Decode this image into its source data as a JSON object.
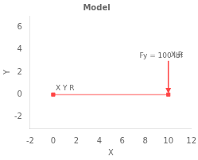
{
  "chart_data": {
    "type": "line",
    "title": "Model",
    "xlabel": "X",
    "ylabel": "Y",
    "xlim": [
      -2,
      12
    ],
    "ylim": [
      -3,
      7
    ],
    "xticks": [
      -2,
      0,
      2,
      4,
      6,
      8,
      10,
      12
    ],
    "yticks": [
      -2,
      0,
      2,
      4,
      6
    ],
    "grid": false,
    "series": [
      {
        "type": "line",
        "color": "#ff9999",
        "x": [
          0,
          10
        ],
        "values": [
          0,
          0
        ]
      },
      {
        "type": "scatter",
        "color": "#ff4444",
        "marker": "square",
        "x": [
          0,
          10
        ],
        "values": [
          0,
          0
        ]
      }
    ],
    "arrows": [
      {
        "x": [
          10,
          10
        ],
        "y": [
          3.0,
          0.1
        ],
        "color": "#ff4444"
      }
    ],
    "annotations": [
      {
        "text": "Fy = 100 lbf",
        "x": 7.3,
        "y": 2.9
      },
      {
        "text": "X Y R",
        "x": 0,
        "y": 0
      },
      {
        "text": "X R",
        "x": 10,
        "y": 0
      }
    ]
  }
}
